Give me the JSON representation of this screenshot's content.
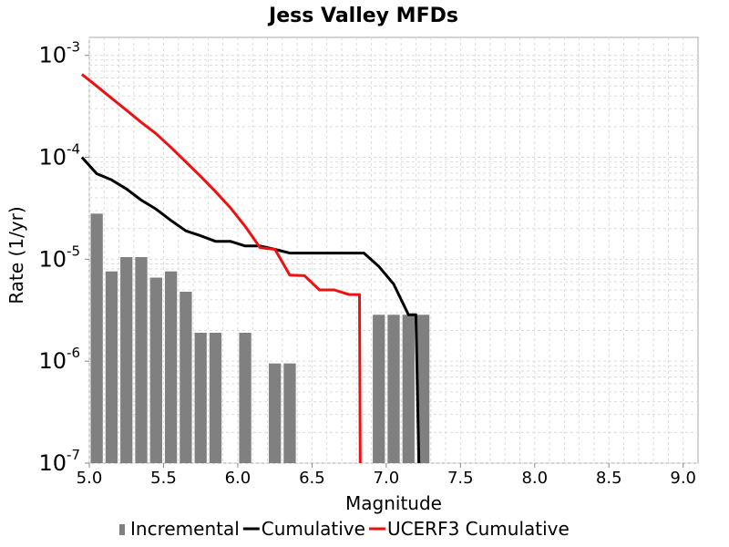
{
  "chart_data": {
    "type": "bar+line",
    "title": "Jess Valley MFDs",
    "xlabel": "Magnitude",
    "ylabel": "Rate (1/yr)",
    "xlim": [
      5.0,
      9.1
    ],
    "ylim": [
      1e-07,
      0.0015
    ],
    "yscale": "log",
    "grid": true,
    "legend_position": "bottom",
    "x_ticks": [
      "5.0",
      "5.5",
      "6.0",
      "6.5",
      "7.0",
      "7.5",
      "8.0",
      "8.5",
      "9.0"
    ],
    "y_ticks": [
      {
        "base": "10",
        "exp": "-7"
      },
      {
        "base": "10",
        "exp": "-6"
      },
      {
        "base": "10",
        "exp": "-5"
      },
      {
        "base": "10",
        "exp": "-4"
      },
      {
        "base": "10",
        "exp": "-3"
      }
    ],
    "series": [
      {
        "name": "Incremental",
        "kind": "bar",
        "color": "#808080",
        "bin_width": 0.1,
        "x": [
          5.0,
          5.1,
          5.2,
          5.3,
          5.4,
          5.5,
          5.6,
          5.7,
          5.8,
          6.0,
          6.2,
          6.3,
          6.9,
          7.0,
          7.1,
          7.2
        ],
        "y": [
          2.8e-05,
          7.6e-06,
          1.05e-05,
          1.05e-05,
          6.6e-06,
          7.6e-06,
          4.8e-06,
          1.9e-06,
          1.9e-06,
          1.9e-06,
          9.5e-07,
          9.5e-07,
          2.85e-06,
          2.85e-06,
          2.85e-06,
          2.85e-06
        ]
      },
      {
        "name": "Cumulative",
        "kind": "line",
        "color": "#000000",
        "x": [
          4.95,
          5.05,
          5.15,
          5.25,
          5.35,
          5.45,
          5.55,
          5.65,
          5.75,
          5.85,
          5.95,
          6.05,
          6.15,
          6.25,
          6.35,
          6.45,
          6.55,
          6.65,
          6.75,
          6.85,
          6.95,
          7.05,
          7.15,
          7.2,
          7.22
        ],
        "y": [
          0.0001,
          6.9e-05,
          6e-05,
          4.9e-05,
          3.8e-05,
          3.1e-05,
          2.4e-05,
          1.9e-05,
          1.7e-05,
          1.5e-05,
          1.5e-05,
          1.35e-05,
          1.35e-05,
          1.25e-05,
          1.15e-05,
          1.15e-05,
          1.15e-05,
          1.15e-05,
          1.15e-05,
          1.15e-05,
          8.5e-06,
          5.7e-06,
          2.85e-06,
          2.85e-06,
          1e-07
        ]
      },
      {
        "name": "UCERF3 Cumulative",
        "kind": "line",
        "color": "#ee1111",
        "x": [
          4.95,
          5.05,
          5.15,
          5.25,
          5.35,
          5.45,
          5.55,
          5.65,
          5.75,
          5.85,
          5.95,
          6.05,
          6.15,
          6.25,
          6.35,
          6.45,
          6.55,
          6.65,
          6.75,
          6.82,
          6.825
        ],
        "y": [
          0.00065,
          0.0005,
          0.00038,
          0.00029,
          0.00022,
          0.00017,
          0.000125,
          9e-05,
          6.5e-05,
          4.6e-05,
          3.2e-05,
          2.1e-05,
          1.3e-05,
          1.25e-05,
          7e-06,
          6.9e-06,
          5e-06,
          5e-06,
          4.5e-06,
          4.5e-06,
          1e-07
        ]
      }
    ]
  }
}
